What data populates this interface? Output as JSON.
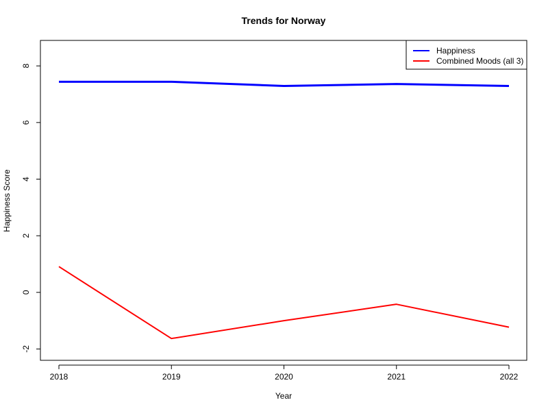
{
  "chart_data": {
    "type": "line",
    "title": "Trends for Norway",
    "xlabel": "Year",
    "ylabel": "Happiness Score",
    "x": [
      2018,
      2019,
      2020,
      2021,
      2022
    ],
    "x_tick_labels": [
      "2018",
      "2019",
      "2020",
      "2021",
      "2022"
    ],
    "y_ticks": [
      -2,
      0,
      2,
      4,
      6,
      8
    ],
    "y_tick_labels": [
      "-2",
      "0",
      "2",
      "4",
      "6",
      "8"
    ],
    "xlim": [
      2018,
      2022
    ],
    "ylim": [
      -2.4,
      8.9
    ],
    "grid": false,
    "legend_position": "top-right",
    "series": [
      {
        "name": "Happiness",
        "color": "#0000ff",
        "values": [
          7.44,
          7.44,
          7.29,
          7.36,
          7.29
        ]
      },
      {
        "name": "Combined Moods (all 3)",
        "color": "#ff0000",
        "values": [
          0.91,
          -1.63,
          -1.0,
          -0.42,
          -1.23
        ]
      }
    ]
  }
}
